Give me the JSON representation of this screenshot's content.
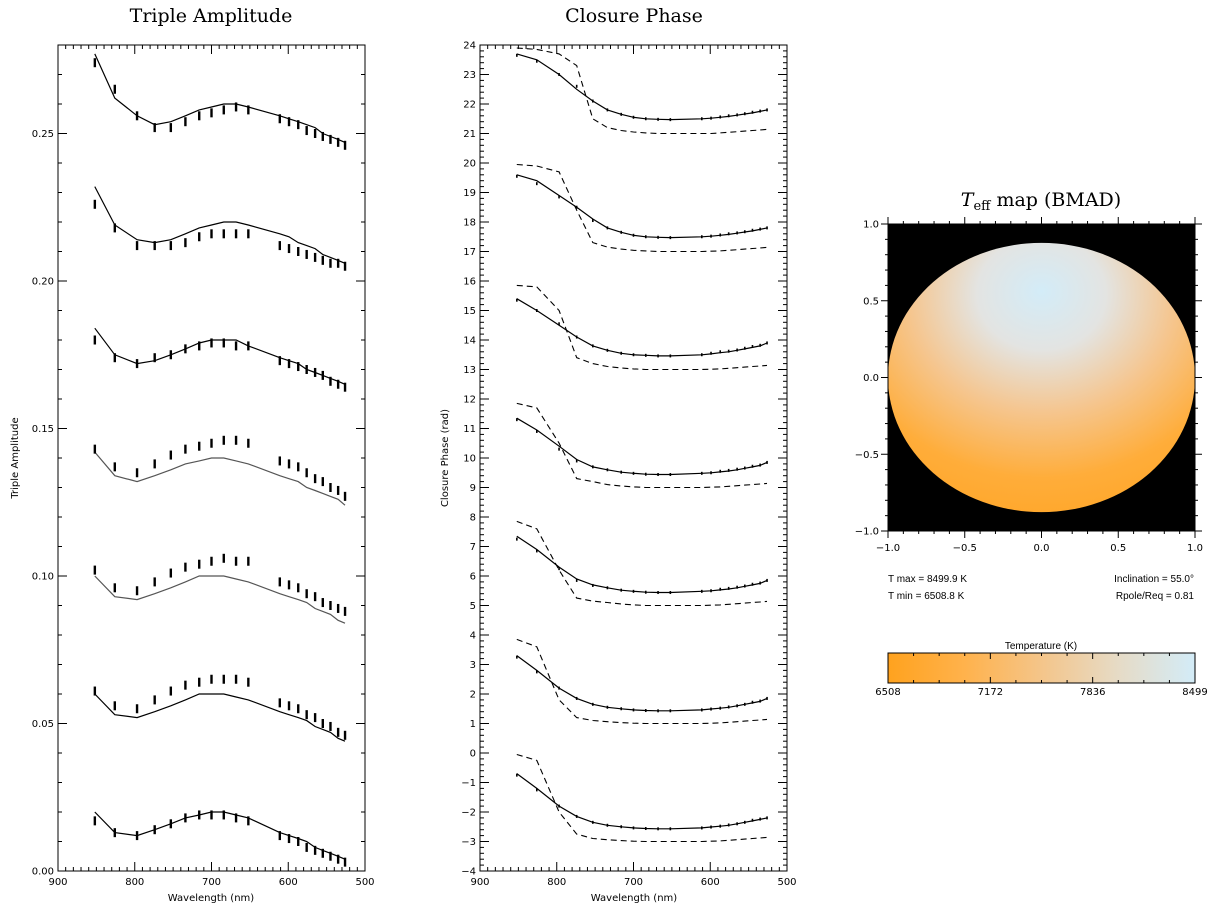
{
  "chart_data": [
    {
      "type": "line",
      "title": "Triple Amplitude",
      "xlabel": "Wavelength (nm)",
      "ylabel": "Triple Amplitude",
      "xlim": [
        900,
        500
      ],
      "ylim": [
        0.0,
        0.28
      ],
      "x_ticks": [
        900,
        800,
        700,
        600,
        500
      ],
      "y_ticks": [
        0.0,
        0.05,
        0.1,
        0.15,
        0.2,
        0.25
      ],
      "x_tick_labels": [
        "900",
        "800",
        "700",
        "600",
        "500"
      ],
      "y_tick_labels": [
        "0.00",
        "0.05",
        "0.10",
        "0.15",
        "0.20",
        "0.25"
      ],
      "wavelengths": [
        852,
        826,
        797,
        774,
        753,
        734,
        716,
        700,
        684,
        668,
        652,
        611,
        599,
        587,
        576,
        565,
        555,
        545,
        535,
        526
      ],
      "series": [
        {
          "model": [
            0.277,
            0.262,
            0.256,
            0.253,
            0.254,
            0.256,
            0.258,
            0.259,
            0.26,
            0.26,
            0.259,
            0.256,
            0.255,
            0.254,
            0.253,
            0.252,
            0.25,
            0.249,
            0.248,
            0.247
          ],
          "data": [
            0.274,
            0.265,
            0.256,
            0.252,
            0.252,
            0.254,
            0.256,
            0.257,
            0.258,
            0.259,
            0.258,
            0.255,
            0.254,
            0.253,
            0.251,
            0.25,
            0.249,
            0.248,
            0.247,
            0.246
          ]
        },
        {
          "model": [
            0.232,
            0.219,
            0.214,
            0.213,
            0.214,
            0.216,
            0.218,
            0.219,
            0.22,
            0.22,
            0.219,
            0.216,
            0.215,
            0.213,
            0.212,
            0.211,
            0.209,
            0.208,
            0.207,
            0.206
          ],
          "data": [
            0.226,
            0.218,
            0.212,
            0.212,
            0.212,
            0.213,
            0.215,
            0.216,
            0.216,
            0.216,
            0.216,
            0.212,
            0.211,
            0.21,
            0.209,
            0.208,
            0.207,
            0.206,
            0.206,
            0.205
          ]
        },
        {
          "model": [
            0.184,
            0.175,
            0.172,
            0.173,
            0.175,
            0.177,
            0.179,
            0.18,
            0.18,
            0.18,
            0.178,
            0.174,
            0.173,
            0.172,
            0.17,
            0.169,
            0.168,
            0.167,
            0.166,
            0.165
          ],
          "data": [
            0.18,
            0.174,
            0.172,
            0.174,
            0.175,
            0.177,
            0.178,
            0.179,
            0.179,
            0.178,
            0.178,
            0.173,
            0.172,
            0.171,
            0.17,
            0.169,
            0.168,
            0.166,
            0.165,
            0.164
          ]
        },
        {
          "model": [
            0.142,
            0.134,
            0.132,
            0.134,
            0.136,
            0.138,
            0.139,
            0.14,
            0.14,
            0.139,
            0.138,
            0.134,
            0.133,
            0.132,
            0.13,
            0.129,
            0.128,
            0.127,
            0.126,
            0.124
          ],
          "data": [
            0.143,
            0.137,
            0.135,
            0.138,
            0.141,
            0.143,
            0.144,
            0.145,
            0.146,
            0.146,
            0.145,
            0.139,
            0.138,
            0.137,
            0.135,
            0.133,
            0.132,
            0.13,
            0.129,
            0.127
          ]
        },
        {
          "model": [
            0.1,
            0.093,
            0.092,
            0.094,
            0.096,
            0.098,
            0.1,
            0.1,
            0.1,
            0.099,
            0.098,
            0.094,
            0.093,
            0.092,
            0.091,
            0.089,
            0.088,
            0.087,
            0.085,
            0.084
          ],
          "data": [
            0.102,
            0.096,
            0.095,
            0.098,
            0.101,
            0.103,
            0.104,
            0.105,
            0.106,
            0.105,
            0.105,
            0.098,
            0.097,
            0.096,
            0.094,
            0.093,
            0.091,
            0.09,
            0.089,
            0.088
          ]
        },
        {
          "model": [
            0.06,
            0.053,
            0.052,
            0.054,
            0.056,
            0.058,
            0.06,
            0.06,
            0.06,
            0.059,
            0.058,
            0.054,
            0.053,
            0.052,
            0.051,
            0.049,
            0.048,
            0.047,
            0.045,
            0.044
          ],
          "data": [
            0.061,
            0.056,
            0.055,
            0.058,
            0.061,
            0.063,
            0.064,
            0.065,
            0.065,
            0.065,
            0.064,
            0.057,
            0.056,
            0.055,
            0.053,
            0.052,
            0.05,
            0.049,
            0.047,
            0.046
          ]
        },
        {
          "model": [
            0.02,
            0.013,
            0.012,
            0.014,
            0.016,
            0.018,
            0.019,
            0.02,
            0.02,
            0.019,
            0.018,
            0.013,
            0.012,
            0.011,
            0.01,
            0.008,
            0.007,
            0.006,
            0.005,
            0.004
          ],
          "data": [
            0.017,
            0.013,
            0.012,
            0.014,
            0.016,
            0.018,
            0.019,
            0.019,
            0.019,
            0.018,
            0.017,
            0.012,
            0.011,
            0.01,
            0.008,
            0.007,
            0.006,
            0.005,
            0.004,
            0.003
          ]
        }
      ]
    },
    {
      "type": "line",
      "title": "Closure Phase",
      "xlabel": "Wavelength (nm)",
      "ylabel": "Closure Phase (rad)",
      "xlim": [
        900,
        500
      ],
      "ylim": [
        -4,
        24
      ],
      "x_ticks": [
        900,
        800,
        700,
        600,
        500
      ],
      "y_ticks": [
        -4,
        -3,
        -2,
        -1,
        0,
        1,
        2,
        3,
        4,
        5,
        6,
        7,
        8,
        9,
        10,
        11,
        12,
        13,
        14,
        15,
        16,
        17,
        18,
        19,
        20,
        21,
        22,
        23,
        24
      ],
      "x_tick_labels": [
        "900",
        "800",
        "700",
        "600",
        "500"
      ],
      "y_tick_labels": [
        "−4",
        "−3",
        "−2",
        "−1",
        "0",
        "1",
        "2",
        "3",
        "4",
        "5",
        "6",
        "7",
        "8",
        "9",
        "10",
        "11",
        "12",
        "13",
        "14",
        "15",
        "16",
        "17",
        "18",
        "19",
        "20",
        "21",
        "22",
        "23",
        "24"
      ],
      "wavelengths": [
        852,
        826,
        797,
        774,
        753,
        734,
        716,
        700,
        684,
        668,
        652,
        611,
        599,
        587,
        576,
        565,
        555,
        545,
        535,
        526
      ],
      "series": [
        {
          "offset": 21,
          "model_solid": [
            2.7,
            2.5,
            2.0,
            1.5,
            1.1,
            0.8,
            0.65,
            0.55,
            0.5,
            0.48,
            0.47,
            0.5,
            0.52,
            0.55,
            0.58,
            0.62,
            0.66,
            0.7,
            0.75,
            0.8
          ],
          "model_dashed": [
            2.9,
            2.85,
            2.7,
            2.3,
            0.5,
            0.2,
            0.1,
            0.05,
            0.02,
            0.0,
            0.0,
            0.0,
            0.0,
            0.02,
            0.04,
            0.06,
            0.08,
            0.1,
            0.12,
            0.14
          ],
          "data": [
            2.65,
            2.45,
            2.0,
            1.6,
            1.1,
            0.8,
            0.65,
            0.55,
            0.5,
            0.48,
            0.47,
            0.5,
            0.52,
            0.56,
            0.6,
            0.63,
            0.67,
            0.72,
            0.76,
            0.8
          ]
        },
        {
          "offset": 17,
          "model_solid": [
            2.6,
            2.4,
            1.9,
            1.5,
            1.1,
            0.8,
            0.65,
            0.55,
            0.5,
            0.48,
            0.47,
            0.5,
            0.52,
            0.55,
            0.58,
            0.62,
            0.66,
            0.7,
            0.75,
            0.8
          ],
          "model_dashed": [
            2.95,
            2.9,
            2.7,
            1.4,
            0.3,
            0.15,
            0.08,
            0.04,
            0.02,
            0.0,
            0.0,
            0.0,
            0.01,
            0.02,
            0.04,
            0.06,
            0.08,
            0.1,
            0.12,
            0.14
          ],
          "data": [
            2.55,
            2.3,
            1.85,
            1.5,
            1.05,
            0.8,
            0.65,
            0.55,
            0.5,
            0.48,
            0.47,
            0.5,
            0.52,
            0.56,
            0.6,
            0.63,
            0.67,
            0.72,
            0.76,
            0.8
          ]
        },
        {
          "offset": 13,
          "model_solid": [
            2.4,
            2.0,
            1.5,
            1.1,
            0.8,
            0.65,
            0.55,
            0.5,
            0.48,
            0.46,
            0.46,
            0.5,
            0.53,
            0.57,
            0.6,
            0.65,
            0.7,
            0.75,
            0.8,
            0.9
          ],
          "model_dashed": [
            2.85,
            2.8,
            2.0,
            0.4,
            0.2,
            0.1,
            0.05,
            0.02,
            0.0,
            0.0,
            0.0,
            0.0,
            0.01,
            0.02,
            0.04,
            0.06,
            0.08,
            0.1,
            0.12,
            0.14
          ],
          "data": [
            2.35,
            2.0,
            1.55,
            1.1,
            0.8,
            0.65,
            0.55,
            0.5,
            0.48,
            0.46,
            0.46,
            0.5,
            0.55,
            0.6,
            0.62,
            0.66,
            0.72,
            0.78,
            0.82,
            0.9
          ]
        },
        {
          "offset": 9,
          "model_solid": [
            2.35,
            1.95,
            1.4,
            0.95,
            0.7,
            0.6,
            0.52,
            0.48,
            0.45,
            0.44,
            0.44,
            0.48,
            0.5,
            0.53,
            0.56,
            0.6,
            0.65,
            0.7,
            0.75,
            0.85
          ],
          "model_dashed": [
            2.85,
            2.7,
            1.5,
            0.3,
            0.2,
            0.1,
            0.05,
            0.02,
            0.0,
            0.0,
            0.0,
            0.0,
            0.01,
            0.02,
            0.04,
            0.06,
            0.08,
            0.1,
            0.12,
            0.14
          ],
          "data": [
            2.3,
            1.9,
            1.3,
            0.9,
            0.7,
            0.6,
            0.52,
            0.48,
            0.45,
            0.44,
            0.44,
            0.48,
            0.5,
            0.55,
            0.58,
            0.62,
            0.66,
            0.72,
            0.76,
            0.85
          ]
        },
        {
          "offset": 5,
          "model_solid": [
            2.35,
            1.9,
            1.3,
            0.9,
            0.7,
            0.6,
            0.52,
            0.48,
            0.45,
            0.44,
            0.44,
            0.48,
            0.5,
            0.53,
            0.56,
            0.6,
            0.65,
            0.7,
            0.75,
            0.85
          ],
          "model_dashed": [
            2.85,
            2.6,
            1.2,
            0.25,
            0.15,
            0.1,
            0.05,
            0.02,
            0.0,
            0.0,
            0.0,
            0.0,
            0.01,
            0.02,
            0.04,
            0.06,
            0.08,
            0.1,
            0.12,
            0.14
          ],
          "data": [
            2.25,
            1.85,
            1.25,
            0.85,
            0.68,
            0.6,
            0.52,
            0.48,
            0.45,
            0.44,
            0.44,
            0.48,
            0.5,
            0.55,
            0.58,
            0.62,
            0.66,
            0.72,
            0.76,
            0.85
          ]
        },
        {
          "offset": 1,
          "model_solid": [
            2.3,
            1.8,
            1.2,
            0.85,
            0.65,
            0.55,
            0.5,
            0.46,
            0.44,
            0.43,
            0.43,
            0.46,
            0.49,
            0.52,
            0.55,
            0.6,
            0.65,
            0.7,
            0.75,
            0.85
          ],
          "model_dashed": [
            2.85,
            2.6,
            0.8,
            0.2,
            0.1,
            0.06,
            0.03,
            0.01,
            0.0,
            0.0,
            0.0,
            0.0,
            0.01,
            0.02,
            0.04,
            0.06,
            0.08,
            0.1,
            0.12,
            0.14
          ],
          "data": [
            2.25,
            1.75,
            1.2,
            0.85,
            0.65,
            0.55,
            0.5,
            0.46,
            0.44,
            0.43,
            0.43,
            0.46,
            0.49,
            0.52,
            0.56,
            0.6,
            0.65,
            0.72,
            0.76,
            0.85
          ]
        },
        {
          "offset": -3,
          "model_solid": [
            2.3,
            1.8,
            1.2,
            0.85,
            0.65,
            0.55,
            0.5,
            0.46,
            0.44,
            0.43,
            0.43,
            0.46,
            0.49,
            0.52,
            0.55,
            0.6,
            0.65,
            0.7,
            0.75,
            0.8
          ],
          "model_dashed": [
            2.95,
            2.75,
            1.0,
            0.25,
            0.1,
            0.06,
            0.03,
            0.01,
            0.0,
            0.0,
            0.0,
            0.0,
            0.01,
            0.02,
            0.04,
            0.06,
            0.08,
            0.1,
            0.12,
            0.14
          ],
          "data": [
            2.25,
            1.75,
            1.2,
            0.85,
            0.65,
            0.55,
            0.5,
            0.46,
            0.44,
            0.43,
            0.43,
            0.46,
            0.49,
            0.52,
            0.56,
            0.6,
            0.65,
            0.72,
            0.76,
            0.8
          ]
        }
      ]
    },
    {
      "type": "heatmap",
      "title_main": "T",
      "title_sub": "eff",
      "title_rest": " map (BMAD)",
      "xlim": [
        -1.0,
        1.0
      ],
      "ylim": [
        -1.0,
        1.0
      ],
      "x_tick_labels": [
        "−1.0",
        "−0.5",
        "0.0",
        "0.5",
        "1.0"
      ],
      "y_tick_labels": [
        "−1.0",
        "−0.5",
        "0.0",
        "0.5",
        "1.0"
      ],
      "x_ticks": [
        -1.0,
        -0.5,
        0.0,
        0.5,
        1.0
      ],
      "y_ticks": [
        -1.0,
        -0.5,
        0.0,
        0.5,
        1.0
      ],
      "rpole_req": 0.81,
      "inclination_deg": 55.0,
      "t_max_label": "T max =  8499.9 K",
      "t_min_label": "T min =  6508.8 K",
      "inclination_label": "Inclination = 55.0°",
      "rpole_label": "Rpole/Req = 0.81",
      "colorbar": {
        "title": "Temperature (K)",
        "tick_labels": [
          "6508",
          "7172",
          "7836",
          "8499"
        ],
        "range": [
          6508,
          8499
        ],
        "colors": [
          "#ffa21e",
          "#ffb24c",
          "#f4c58a",
          "#e6dbc6",
          "#d3ecf8"
        ]
      },
      "background_color": "#000000",
      "hot_color": "#d3ecf8",
      "cool_color": "#ffa21e"
    }
  ]
}
